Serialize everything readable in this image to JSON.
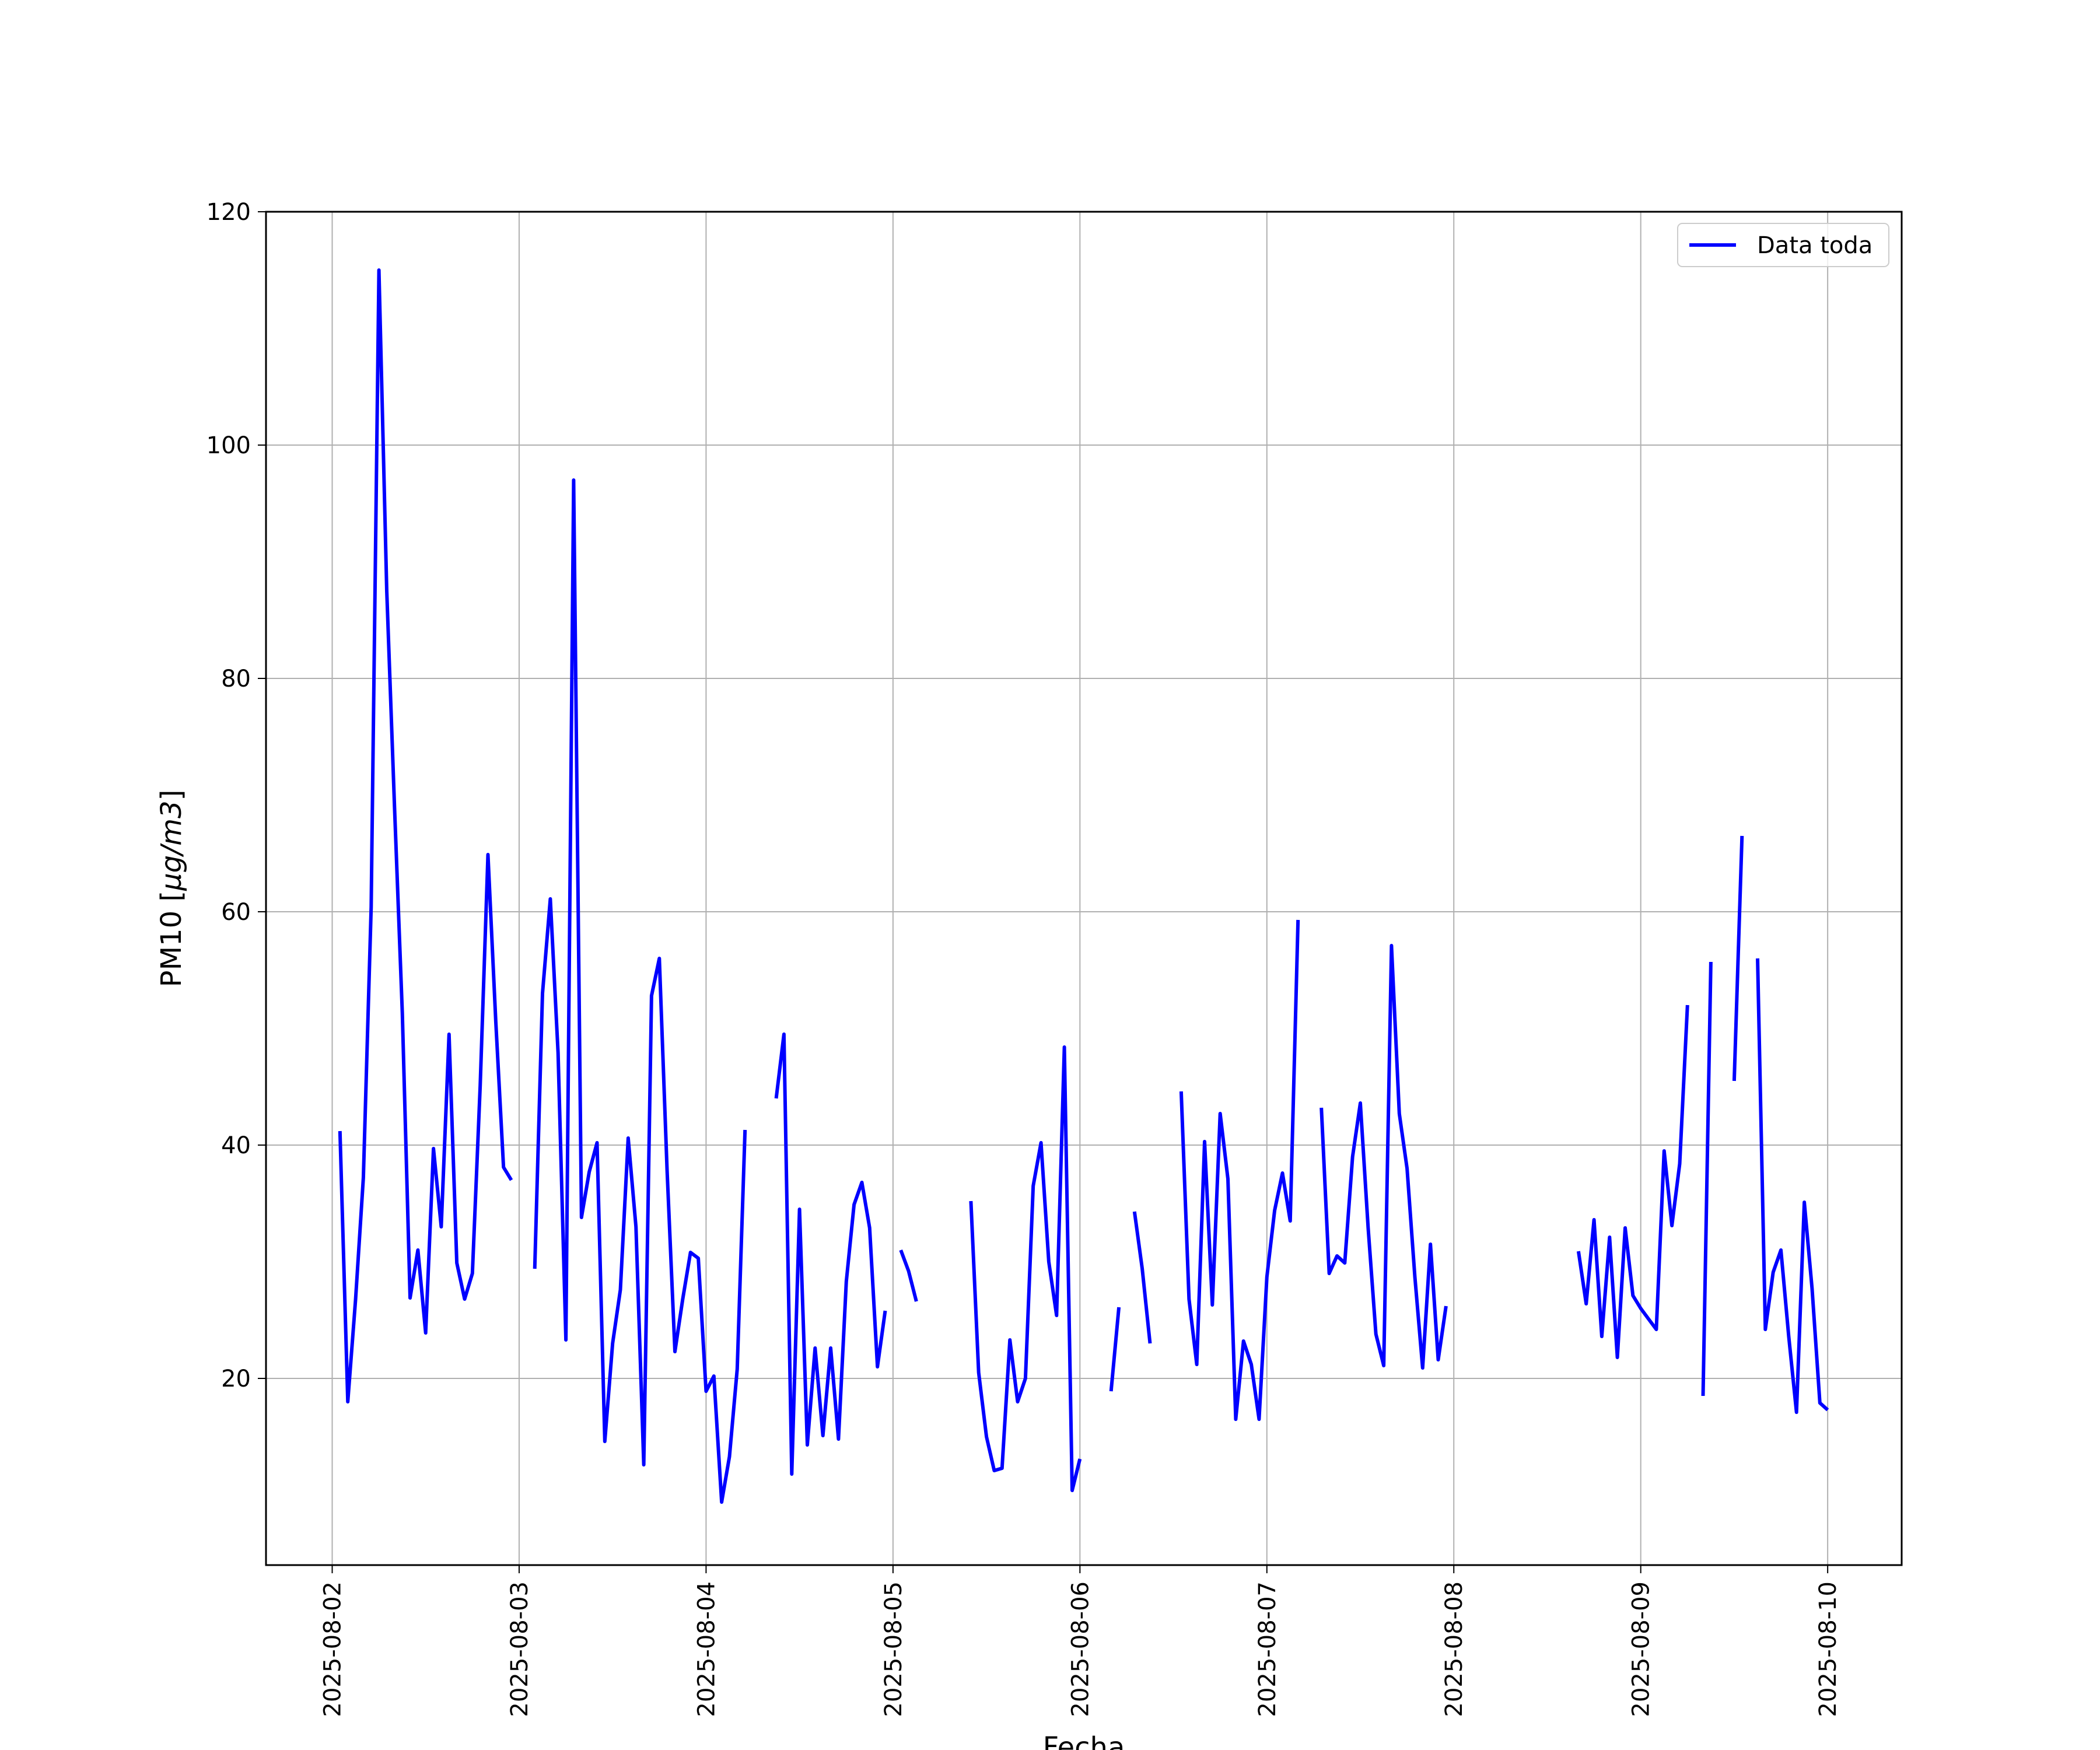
{
  "chart_data": {
    "type": "line",
    "title": "",
    "xlabel": "Fecha",
    "ylabel": "PM10 [μg/m3]",
    "ylim": [
      4,
      120
    ],
    "yticks": [
      20,
      40,
      60,
      80,
      100,
      120
    ],
    "xlim": [
      "2025-08-01 15:30",
      "2025-08-10 09:30"
    ],
    "xticks": [
      "2025-08-02",
      "2025-08-03",
      "2025-08-04",
      "2025-08-05",
      "2025-08-06",
      "2025-08-07",
      "2025-08-08",
      "2025-08-09",
      "2025-08-10"
    ],
    "grid": true,
    "legend_position": "upper right",
    "colors": {
      "series": "#0000ff",
      "grid": "#b0b0b0"
    },
    "series": [
      {
        "name": "Data toda",
        "color": "#0000ff",
        "segments": [
          [
            [
              "2025-08-02 01:00",
              41.2
            ],
            [
              "2025-08-02 02:00",
              18.0
            ],
            [
              "2025-08-02 03:00",
              26.8
            ],
            [
              "2025-08-02 04:00",
              37.2
            ],
            [
              "2025-08-02 05:00",
              60.4
            ],
            [
              "2025-08-02 06:00",
              115.0
            ],
            [
              "2025-08-02 07:00",
              87.5
            ],
            [
              "2025-08-02 08:00",
              69.0
            ],
            [
              "2025-08-02 09:00",
              51.3
            ],
            [
              "2025-08-02 10:00",
              26.9
            ],
            [
              "2025-08-02 11:00",
              31.0
            ],
            [
              "2025-08-02 12:00",
              23.9
            ],
            [
              "2025-08-02 13:00",
              39.7
            ],
            [
              "2025-08-02 14:00",
              33.0
            ],
            [
              "2025-08-02 15:00",
              49.5
            ],
            [
              "2025-08-02 16:00",
              29.9
            ],
            [
              "2025-08-02 17:00",
              26.8
            ],
            [
              "2025-08-02 18:00",
              29.0
            ],
            [
              "2025-08-02 19:00",
              45.1
            ],
            [
              "2025-08-02 20:00",
              64.9
            ],
            [
              "2025-08-02 21:00",
              50.6
            ],
            [
              "2025-08-02 22:00",
              38.1
            ],
            [
              "2025-08-02 23:00",
              37.0
            ]
          ],
          [
            [
              "2025-08-03 02:00",
              29.4
            ],
            [
              "2025-08-03 03:00",
              53.0
            ],
            [
              "2025-08-03 04:00",
              61.1
            ],
            [
              "2025-08-03 05:00",
              47.9
            ],
            [
              "2025-08-03 06:00",
              23.3
            ],
            [
              "2025-08-03 07:00",
              97.0
            ],
            [
              "2025-08-03 08:00",
              33.8
            ],
            [
              "2025-08-03 09:00",
              37.7
            ],
            [
              "2025-08-03 10:00",
              40.2
            ],
            [
              "2025-08-03 11:00",
              14.6
            ],
            [
              "2025-08-03 12:00",
              23.0
            ],
            [
              "2025-08-03 13:00",
              27.6
            ],
            [
              "2025-08-03 14:00",
              40.6
            ],
            [
              "2025-08-03 15:00",
              33.0
            ],
            [
              "2025-08-03 16:00",
              12.6
            ],
            [
              "2025-08-03 17:00",
              52.8
            ],
            [
              "2025-08-03 18:00",
              56.0
            ],
            [
              "2025-08-03 19:00",
              37.8
            ],
            [
              "2025-08-03 20:00",
              22.3
            ],
            [
              "2025-08-03 21:00",
              26.8
            ],
            [
              "2025-08-03 22:00",
              30.8
            ],
            [
              "2025-08-03 23:00",
              30.3
            ],
            [
              "2025-08-04 00:00",
              18.9
            ],
            [
              "2025-08-04 01:00",
              20.2
            ],
            [
              "2025-08-04 02:00",
              9.4
            ],
            [
              "2025-08-04 03:00",
              13.3
            ],
            [
              "2025-08-04 04:00",
              20.8
            ],
            [
              "2025-08-04 05:00",
              41.3
            ]
          ],
          [
            [
              "2025-08-04 09:00",
              44.0
            ],
            [
              "2025-08-04 10:00",
              49.5
            ],
            [
              "2025-08-04 11:00",
              11.8
            ],
            [
              "2025-08-04 12:00",
              34.5
            ],
            [
              "2025-08-04 13:00",
              14.3
            ],
            [
              "2025-08-04 14:00",
              22.6
            ],
            [
              "2025-08-04 15:00",
              15.1
            ],
            [
              "2025-08-04 16:00",
              22.6
            ],
            [
              "2025-08-04 17:00",
              14.8
            ],
            [
              "2025-08-04 18:00",
              28.3
            ],
            [
              "2025-08-04 19:00",
              34.9
            ],
            [
              "2025-08-04 20:00",
              36.8
            ],
            [
              "2025-08-04 21:00",
              32.9
            ],
            [
              "2025-08-04 22:00",
              21.0
            ],
            [
              "2025-08-04 23:00",
              25.8
            ]
          ],
          [
            [
              "2025-08-05 01:00",
              31.0
            ],
            [
              "2025-08-05 02:00",
              29.2
            ],
            [
              "2025-08-05 03:00",
              26.6
            ]
          ],
          [
            [
              "2025-08-05 10:00",
              35.2
            ],
            [
              "2025-08-05 11:00",
              20.5
            ],
            [
              "2025-08-05 12:00",
              15.0
            ],
            [
              "2025-08-05 13:00",
              12.1
            ],
            [
              "2025-08-05 14:00",
              12.3
            ],
            [
              "2025-08-05 15:00",
              23.3
            ],
            [
              "2025-08-05 16:00",
              18.0
            ],
            [
              "2025-08-05 17:00",
              20.0
            ],
            [
              "2025-08-05 18:00",
              36.5
            ],
            [
              "2025-08-05 19:00",
              40.2
            ],
            [
              "2025-08-05 20:00",
              30.0
            ],
            [
              "2025-08-05 21:00",
              25.4
            ],
            [
              "2025-08-05 22:00",
              48.4
            ],
            [
              "2025-08-05 23:00",
              10.4
            ],
            [
              "2025-08-06 00:00",
              13.1
            ]
          ],
          [
            [
              "2025-08-06 04:00",
              18.9
            ],
            [
              "2025-08-06 05:00",
              26.1
            ]
          ],
          [
            [
              "2025-08-06 07:00",
              34.3
            ],
            [
              "2025-08-06 08:00",
              29.4
            ],
            [
              "2025-08-06 09:00",
              23.0
            ]
          ],
          [
            [
              "2025-08-06 13:00",
              44.6
            ],
            [
              "2025-08-06 14:00",
              26.8
            ],
            [
              "2025-08-06 15:00",
              21.2
            ],
            [
              "2025-08-06 16:00",
              40.3
            ],
            [
              "2025-08-06 17:00",
              26.3
            ],
            [
              "2025-08-06 18:00",
              42.7
            ],
            [
              "2025-08-06 19:00",
              37.1
            ],
            [
              "2025-08-06 20:00",
              16.5
            ],
            [
              "2025-08-06 21:00",
              23.2
            ],
            [
              "2025-08-06 22:00",
              21.2
            ],
            [
              "2025-08-06 23:00",
              16.5
            ],
            [
              "2025-08-07 00:00",
              28.7
            ],
            [
              "2025-08-07 01:00",
              34.4
            ],
            [
              "2025-08-07 02:00",
              37.6
            ],
            [
              "2025-08-07 03:00",
              33.5
            ],
            [
              "2025-08-07 04:00",
              59.3
            ]
          ],
          [
            [
              "2025-08-07 07:00",
              43.2
            ],
            [
              "2025-08-07 08:00",
              29.0
            ],
            [
              "2025-08-07 09:00",
              30.5
            ],
            [
              "2025-08-07 10:00",
              29.9
            ],
            [
              "2025-08-07 11:00",
              39.0
            ],
            [
              "2025-08-07 12:00",
              43.6
            ],
            [
              "2025-08-07 13:00",
              32.9
            ],
            [
              "2025-08-07 14:00",
              23.8
            ],
            [
              "2025-08-07 15:00",
              21.1
            ],
            [
              "2025-08-07 16:00",
              57.1
            ],
            [
              "2025-08-07 17:00",
              42.7
            ],
            [
              "2025-08-07 18:00",
              38.0
            ],
            [
              "2025-08-07 19:00",
              28.7
            ],
            [
              "2025-08-07 20:00",
              20.9
            ],
            [
              "2025-08-07 21:00",
              31.5
            ],
            [
              "2025-08-07 22:00",
              21.6
            ],
            [
              "2025-08-07 23:00",
              26.2
            ]
          ],
          [
            [
              "2025-08-08 16:00",
              30.9
            ],
            [
              "2025-08-08 17:00",
              26.4
            ],
            [
              "2025-08-08 18:00",
              33.6
            ],
            [
              "2025-08-08 19:00",
              23.6
            ],
            [
              "2025-08-08 20:00",
              32.1
            ],
            [
              "2025-08-08 21:00",
              21.8
            ],
            [
              "2025-08-08 22:00",
              32.9
            ],
            [
              "2025-08-08 23:00",
              27.1
            ],
            [
              "2025-08-09 00:00",
              26.0
            ],
            [
              "2025-08-09 01:00",
              25.1
            ],
            [
              "2025-08-09 02:00",
              24.2
            ],
            [
              "2025-08-09 03:00",
              39.5
            ],
            [
              "2025-08-09 04:00",
              33.1
            ],
            [
              "2025-08-09 05:00",
              38.4
            ],
            [
              "2025-08-09 06:00",
              52.0
            ]
          ],
          [
            [
              "2025-08-09 08:00",
              18.5
            ],
            [
              "2025-08-09 09:00",
              55.7
            ]
          ],
          [
            [
              "2025-08-09 12:00",
              45.5
            ],
            [
              "2025-08-09 13:00",
              66.5
            ]
          ],
          [
            [
              "2025-08-09 15:00",
              56.0
            ],
            [
              "2025-08-09 16:00",
              24.2
            ],
            [
              "2025-08-09 17:00",
              29.1
            ],
            [
              "2025-08-09 18:00",
              31.0
            ],
            [
              "2025-08-09 19:00",
              23.6
            ],
            [
              "2025-08-09 20:00",
              17.1
            ],
            [
              "2025-08-09 21:00",
              35.1
            ],
            [
              "2025-08-09 22:00",
              27.7
            ],
            [
              "2025-08-09 23:00",
              17.9
            ],
            [
              "2025-08-10 00:00",
              17.3
            ]
          ]
        ]
      }
    ]
  }
}
